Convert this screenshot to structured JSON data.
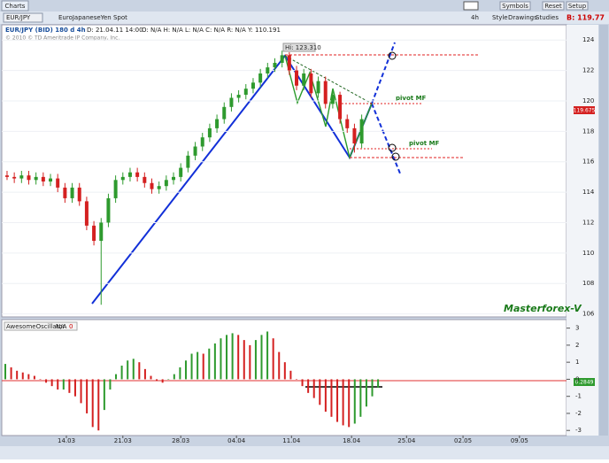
{
  "toolbar": {
    "tab": "Charts",
    "symbol": "EUR/JPY",
    "description": "EuroJapaneseYen Spot",
    "period": "4h",
    "buttons": [
      "Style",
      "Drawings",
      "Studies"
    ],
    "symbols": "Symbols",
    "reset": "Reset",
    "setup": "Setup",
    "bid": "B: 119.77"
  },
  "info": {
    "legend": "EUR/JPY (BID) 180 d 4h",
    "date": "D: 21.04.11 14:00",
    "ohlc": "O: N/A  H: N/A  L: N/A  C: N/A  R: N/A  Y: 110.191",
    "copyright": "© 2010 © TD Ameritrade IP Company, Inc."
  },
  "annotations": {
    "high": "Hi: 123.310",
    "pivot_upper": "pivot MF",
    "pivot_lower": "pivot MF",
    "watermark": "Masterforex-V",
    "last_price": "119.675",
    "osc_last": "0.2849"
  },
  "chart_data": [
    {
      "type": "candlestick",
      "up_color": "#2e9a2e",
      "down_color": "#d42020",
      "open": [
        115.1,
        115.0,
        114.9,
        115.1,
        114.8,
        115.0,
        114.7,
        114.9,
        114.3,
        113.6,
        114.3,
        113.4,
        111.8,
        110.8,
        112.0,
        113.6,
        114.8,
        115.0,
        115.3,
        115.0,
        114.6,
        114.2,
        114.4,
        114.8,
        115.0,
        115.6,
        116.4,
        117.0,
        117.6,
        118.2,
        118.8,
        119.6,
        120.2,
        120.4,
        120.8,
        121.2,
        121.8,
        122.2,
        122.5,
        123.0,
        122.0,
        121.0,
        121.8,
        120.5,
        121.3,
        119.8,
        120.4,
        118.8,
        118.2,
        117.2
      ],
      "high": [
        115.4,
        115.3,
        115.4,
        115.4,
        115.3,
        115.3,
        115.2,
        115.2,
        114.6,
        114.6,
        114.6,
        113.7,
        112.1,
        112.3,
        113.9,
        115.1,
        115.3,
        115.6,
        115.6,
        115.3,
        114.9,
        114.7,
        115.1,
        115.3,
        115.9,
        116.7,
        117.3,
        117.9,
        118.5,
        119.1,
        119.9,
        120.5,
        120.7,
        121.1,
        121.5,
        122.1,
        122.5,
        122.8,
        123.3,
        123.2,
        122.3,
        122.1,
        122.1,
        121.6,
        121.6,
        120.7,
        120.6,
        119.1,
        118.5,
        119.1
      ],
      "low": [
        114.8,
        114.6,
        114.6,
        114.5,
        114.5,
        114.4,
        114.4,
        114.0,
        113.3,
        113.3,
        113.1,
        111.5,
        110.5,
        106.6,
        111.7,
        113.3,
        114.5,
        114.7,
        114.7,
        114.3,
        113.9,
        113.9,
        114.1,
        114.5,
        114.7,
        115.3,
        116.1,
        116.7,
        117.3,
        117.9,
        118.5,
        119.3,
        119.9,
        120.1,
        120.5,
        120.9,
        121.5,
        121.9,
        122.2,
        121.7,
        120.7,
        120.7,
        120.2,
        120.2,
        119.5,
        119.5,
        118.5,
        117.9,
        116.6,
        116.9
      ],
      "close": [
        115.0,
        114.9,
        115.1,
        114.8,
        115.0,
        114.7,
        114.9,
        114.3,
        113.6,
        114.3,
        113.4,
        111.8,
        110.8,
        112.0,
        113.6,
        114.8,
        115.0,
        115.3,
        115.0,
        114.6,
        114.2,
        114.4,
        114.8,
        115.0,
        115.6,
        116.4,
        117.0,
        117.6,
        118.2,
        118.8,
        119.6,
        120.2,
        120.4,
        120.8,
        121.2,
        121.8,
        122.2,
        122.5,
        123.0,
        122.0,
        121.0,
        121.8,
        120.5,
        121.3,
        119.8,
        120.4,
        118.8,
        118.2,
        117.2,
        118.8
      ],
      "xlim": [
        -0.73,
        77.3
      ],
      "ylim": [
        105.8,
        125
      ],
      "yticks": [
        106,
        108,
        110,
        112,
        114,
        116,
        118,
        120,
        122,
        124
      ],
      "xticks": [
        {
          "value": 8.2,
          "label": "14.03"
        },
        {
          "value": 16.0,
          "label": "21.03"
        },
        {
          "value": 24.0,
          "label": "28.03"
        },
        {
          "value": 31.7,
          "label": "04.04"
        },
        {
          "value": 39.3,
          "label": "11.04"
        },
        {
          "value": 47.6,
          "label": "18.04"
        },
        {
          "value": 55.2,
          "label": "25.04"
        },
        {
          "value": 63.0,
          "label": "02.05"
        },
        {
          "value": 70.8,
          "label": "09.05"
        }
      ]
    },
    {
      "type": "histogram-oscillator",
      "name": "AwesomeOscillator",
      "status": "N/A",
      "param": "0",
      "up_color": "#2e9a2e",
      "down_color": "#d42020",
      "values": [
        0.9,
        0.7,
        0.5,
        0.4,
        0.3,
        0.2,
        0.0,
        -0.2,
        -0.4,
        -0.6,
        -0.6,
        -0.8,
        -1.0,
        -1.4,
        -2.0,
        -2.8,
        -3.0,
        -1.8,
        -0.6,
        0.3,
        0.8,
        1.1,
        1.2,
        1.0,
        0.6,
        0.2,
        -0.1,
        -0.2,
        0.0,
        0.3,
        0.7,
        1.1,
        1.5,
        1.6,
        1.5,
        1.8,
        2.1,
        2.4,
        2.6,
        2.7,
        2.6,
        2.3,
        2.0,
        2.3,
        2.6,
        2.8,
        2.4,
        1.6,
        1.0,
        0.5,
        0.0,
        -0.4,
        -0.8,
        -1.1,
        -1.5,
        -1.9,
        -2.2,
        -2.5,
        -2.7,
        -2.8,
        -2.6,
        -2.2,
        -1.6,
        -1.0,
        -0.5
      ],
      "xlim": [
        -0.61,
        96.36
      ],
      "ylim": [
        -3.3,
        3.5
      ],
      "yticks": [
        -3,
        -2,
        -1,
        0,
        1,
        2,
        3
      ]
    }
  ]
}
